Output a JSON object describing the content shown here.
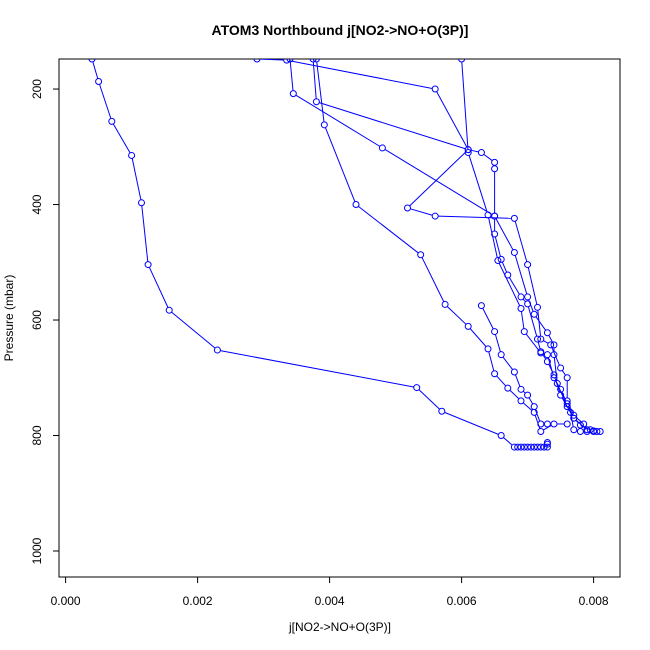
{
  "chart_data": {
    "type": "line",
    "title": "ATOM3 Northbound j[NO2->NO+O(3P)]",
    "xlabel": "j[NO2->NO+O(3P)]",
    "ylabel": "Pressure (mbar)",
    "xlim": [
      -0.0001,
      0.0084
    ],
    "ylim": [
      1045,
      148
    ],
    "y_reversed": true,
    "x_ticks": [
      0.0,
      0.002,
      0.004,
      0.006,
      0.008
    ],
    "x_tick_labels": [
      "0.000",
      "0.002",
      "0.004",
      "0.006",
      "0.008"
    ],
    "y_ticks": [
      200,
      400,
      600,
      800,
      1000
    ],
    "y_tick_labels": [
      "200",
      "400",
      "600",
      "800",
      "1000"
    ],
    "color": "#0000ff",
    "markers": "open-circle",
    "grid": false,
    "series": [
      {
        "points": [
          [
            0.0004,
            148
          ],
          [
            0.0005,
            187
          ],
          [
            0.0007,
            256
          ],
          [
            0.001,
            315
          ],
          [
            0.00115,
            397
          ],
          [
            0.00125,
            504
          ],
          [
            0.00157,
            583
          ],
          [
            0.0023,
            652
          ],
          [
            0.00532,
            717
          ],
          [
            0.0057,
            758
          ],
          [
            0.0066,
            800
          ],
          [
            0.0068,
            820
          ],
          [
            0.00685,
            820
          ],
          [
            0.0069,
            820
          ],
          [
            0.00695,
            820
          ],
          [
            0.007,
            820
          ],
          [
            0.00705,
            820
          ],
          [
            0.0071,
            820
          ],
          [
            0.00715,
            820
          ],
          [
            0.0072,
            820
          ],
          [
            0.00725,
            820
          ],
          [
            0.0073,
            820
          ],
          [
            0.0073,
            815
          ],
          [
            0.0073,
            812
          ]
        ]
      },
      {
        "points": [
          [
            0.0029,
            148
          ],
          [
            0.00335,
            150
          ],
          [
            0.0056,
            200
          ],
          [
            0.0061,
            305
          ],
          [
            0.0063,
            310
          ],
          [
            0.0065,
            327
          ],
          [
            0.0065,
            338
          ],
          [
            0.0065,
            420
          ],
          [
            0.0065,
            451
          ],
          [
            0.0066,
            495
          ],
          [
            0.0067,
            522
          ],
          [
            0.0069,
            560
          ],
          [
            0.007,
            572
          ],
          [
            0.00715,
            633
          ],
          [
            0.0072,
            655
          ],
          [
            0.0073,
            672
          ],
          [
            0.0074,
            695
          ],
          [
            0.0075,
            730
          ],
          [
            0.0077,
            770
          ],
          [
            0.0078,
            782
          ],
          [
            0.00795,
            790
          ],
          [
            0.008,
            792
          ],
          [
            0.00805,
            793
          ]
        ]
      },
      {
        "points": [
          [
            0.0034,
            148
          ],
          [
            0.00345,
            208
          ],
          [
            0.0048,
            302
          ],
          [
            0.0065,
            420
          ],
          [
            0.0068,
            483
          ],
          [
            0.007,
            560
          ],
          [
            0.0071,
            590
          ],
          [
            0.0073,
            622
          ],
          [
            0.0074,
            643
          ],
          [
            0.0074,
            660
          ],
          [
            0.00745,
            710
          ],
          [
            0.0076,
            750
          ],
          [
            0.00765,
            760
          ],
          [
            0.0077,
            790
          ],
          [
            0.0078,
            793
          ]
        ]
      },
      {
        "points": [
          [
            0.00375,
            148
          ],
          [
            0.0038,
            222
          ],
          [
            0.0061,
            305
          ],
          [
            0.00518,
            406
          ],
          [
            0.0056,
            420
          ],
          [
            0.0068,
            424
          ],
          [
            0.007,
            504
          ],
          [
            0.00715,
            578
          ],
          [
            0.0072,
            633
          ],
          [
            0.00735,
            643
          ],
          [
            0.0075,
            683
          ],
          [
            0.0076,
            700
          ],
          [
            0.0076,
            740
          ],
          [
            0.0077,
            765
          ],
          [
            0.00785,
            780
          ],
          [
            0.0079,
            793
          ]
        ]
      },
      {
        "points": [
          [
            0.0038,
            148
          ],
          [
            0.00392,
            262
          ],
          [
            0.0044,
            400
          ],
          [
            0.00538,
            487
          ],
          [
            0.00575,
            573
          ],
          [
            0.0061,
            611
          ],
          [
            0.0064,
            650
          ],
          [
            0.0065,
            693
          ],
          [
            0.0067,
            718
          ],
          [
            0.0069,
            740
          ],
          [
            0.0071,
            760
          ],
          [
            0.0072,
            793
          ],
          [
            0.0074,
            780
          ],
          [
            0.0076,
            780
          ]
        ]
      },
      {
        "points": [
          [
            0.006,
            148
          ],
          [
            0.0061,
            310
          ],
          [
            0.0064,
            418
          ],
          [
            0.00655,
            497
          ],
          [
            0.0069,
            580
          ],
          [
            0.00695,
            620
          ],
          [
            0.0072,
            657
          ],
          [
            0.0073,
            660
          ],
          [
            0.0074,
            700
          ],
          [
            0.0075,
            720
          ],
          [
            0.0076,
            745
          ],
          [
            0.0077,
            770
          ],
          [
            0.0079,
            790
          ],
          [
            0.008,
            793
          ],
          [
            0.0081,
            793
          ]
        ]
      },
      {
        "points": [
          [
            0.0063,
            575
          ],
          [
            0.0065,
            620
          ],
          [
            0.0066,
            660
          ],
          [
            0.0068,
            690
          ],
          [
            0.0069,
            720
          ],
          [
            0.007,
            730
          ],
          [
            0.0071,
            750
          ],
          [
            0.0072,
            780
          ],
          [
            0.0073,
            780
          ]
        ]
      }
    ]
  }
}
